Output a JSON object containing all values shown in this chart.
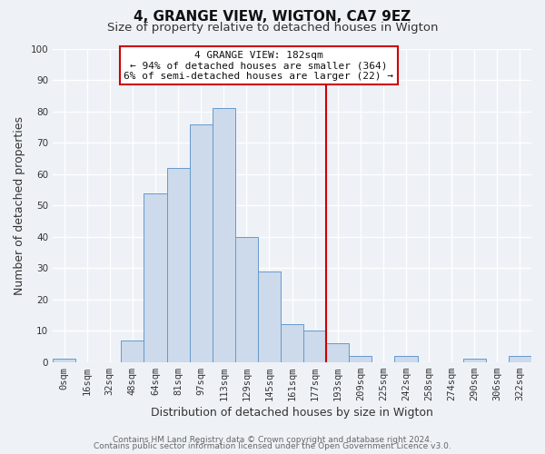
{
  "title": "4, GRANGE VIEW, WIGTON, CA7 9EZ",
  "subtitle": "Size of property relative to detached houses in Wigton",
  "xlabel": "Distribution of detached houses by size in Wigton",
  "ylabel": "Number of detached properties",
  "bar_labels": [
    "0sqm",
    "16sqm",
    "32sqm",
    "48sqm",
    "64sqm",
    "81sqm",
    "97sqm",
    "113sqm",
    "129sqm",
    "145sqm",
    "161sqm",
    "177sqm",
    "193sqm",
    "209sqm",
    "225sqm",
    "242sqm",
    "258sqm",
    "274sqm",
    "290sqm",
    "306sqm",
    "322sqm"
  ],
  "bar_values": [
    1,
    0,
    0,
    7,
    54,
    62,
    76,
    81,
    40,
    29,
    12,
    10,
    6,
    2,
    0,
    2,
    0,
    0,
    1,
    0,
    2
  ],
  "bar_color": "#ccdaeb",
  "bar_edge_color": "#6699cc",
  "vline_x": 11.5,
  "vline_color": "#cc0000",
  "ylim": [
    0,
    100
  ],
  "annotation_title": "4 GRANGE VIEW: 182sqm",
  "annotation_line1": "← 94% of detached houses are smaller (364)",
  "annotation_line2": "6% of semi-detached houses are larger (22) →",
  "annotation_box_color": "#ffffff",
  "annotation_box_edge": "#cc0000",
  "footer1": "Contains HM Land Registry data © Crown copyright and database right 2024.",
  "footer2": "Contains public sector information licensed under the Open Government Licence v3.0.",
  "bg_color": "#eef2f7",
  "grid_color": "#ffffff",
  "title_fontsize": 11,
  "subtitle_fontsize": 9.5,
  "axis_label_fontsize": 9,
  "tick_fontsize": 7.5,
  "footer_fontsize": 6.5,
  "ann_fontsize": 8
}
